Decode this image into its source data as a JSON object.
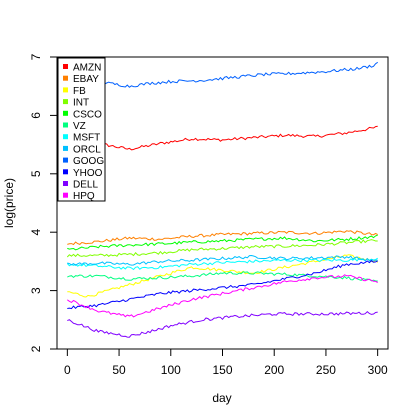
{
  "chart_data": {
    "type": "line",
    "title": "",
    "xlabel": "day",
    "ylabel": "log(price)",
    "xlim": [
      -10,
      310
    ],
    "ylim": [
      2.0,
      7.0
    ],
    "x_ticks": [
      0,
      50,
      100,
      150,
      200,
      250,
      300
    ],
    "y_ticks": [
      2,
      3,
      4,
      5,
      6,
      7
    ],
    "grid": false,
    "legend": "top-left",
    "series": [
      {
        "name": "AMZN",
        "color": "#ff0000",
        "x": [
          0,
          30,
          60,
          90,
          120,
          150,
          180,
          210,
          240,
          270,
          295,
          300
        ],
        "y": [
          5.65,
          5.52,
          5.42,
          5.52,
          5.6,
          5.58,
          5.62,
          5.66,
          5.64,
          5.7,
          5.78,
          5.8
        ]
      },
      {
        "name": "EBAY",
        "color": "#ff8000",
        "x": [
          0,
          30,
          60,
          90,
          120,
          150,
          180,
          210,
          240,
          270,
          300
        ],
        "y": [
          3.8,
          3.84,
          3.9,
          3.88,
          3.93,
          3.96,
          3.98,
          4.0,
          3.98,
          4.02,
          3.95
        ]
      },
      {
        "name": "FB",
        "color": "#ffff00",
        "x": [
          0,
          20,
          40,
          60,
          80,
          100,
          120,
          150,
          180,
          210,
          240,
          270,
          300
        ],
        "y": [
          2.98,
          2.9,
          3.0,
          3.1,
          3.2,
          3.3,
          3.4,
          3.35,
          3.3,
          3.4,
          3.5,
          3.6,
          3.5
        ]
      },
      {
        "name": "INT",
        "color": "#80ff00",
        "x": [
          0,
          30,
          60,
          90,
          120,
          150,
          180,
          210,
          240,
          270,
          300
        ],
        "y": [
          3.6,
          3.6,
          3.62,
          3.65,
          3.7,
          3.72,
          3.75,
          3.76,
          3.78,
          3.82,
          3.86
        ]
      },
      {
        "name": "CSCO",
        "color": "#00ff00",
        "x": [
          0,
          30,
          60,
          90,
          120,
          150,
          180,
          210,
          240,
          270,
          300
        ],
        "y": [
          3.7,
          3.75,
          3.78,
          3.8,
          3.83,
          3.85,
          3.88,
          3.9,
          3.85,
          3.88,
          3.93
        ]
      },
      {
        "name": "VZ",
        "color": "#00ff80",
        "x": [
          0,
          30,
          60,
          90,
          120,
          150,
          180,
          210,
          240,
          270,
          300
        ],
        "y": [
          3.25,
          3.25,
          3.2,
          3.22,
          3.25,
          3.3,
          3.3,
          3.28,
          3.25,
          3.22,
          3.15
        ]
      },
      {
        "name": "MSFT",
        "color": "#00ffff",
        "x": [
          0,
          30,
          60,
          90,
          120,
          150,
          180,
          210,
          240,
          270,
          300
        ],
        "y": [
          3.45,
          3.42,
          3.38,
          3.4,
          3.45,
          3.48,
          3.5,
          3.52,
          3.52,
          3.52,
          3.55
        ]
      },
      {
        "name": "ORCL",
        "color": "#00c0ff",
        "x": [
          0,
          30,
          60,
          90,
          120,
          150,
          180,
          210,
          240,
          270,
          300
        ],
        "y": [
          3.45,
          3.47,
          3.45,
          3.5,
          3.52,
          3.55,
          3.58,
          3.55,
          3.56,
          3.58,
          3.5
        ]
      },
      {
        "name": "GOOG",
        "color": "#0060ff",
        "x": [
          0,
          20,
          40,
          60,
          80,
          100,
          130,
          160,
          190,
          220,
          250,
          280,
          295,
          300
        ],
        "y": [
          6.55,
          6.57,
          6.55,
          6.5,
          6.55,
          6.58,
          6.6,
          6.65,
          6.7,
          6.72,
          6.75,
          6.8,
          6.85,
          6.9
        ]
      },
      {
        "name": "YHOO",
        "color": "#0000ff",
        "x": [
          0,
          30,
          60,
          90,
          120,
          150,
          180,
          210,
          240,
          270,
          300
        ],
        "y": [
          2.7,
          2.75,
          2.85,
          2.95,
          3.0,
          3.05,
          3.1,
          3.2,
          3.3,
          3.45,
          3.5
        ]
      },
      {
        "name": "DELL",
        "color": "#8000ff",
        "x": [
          0,
          30,
          60,
          80,
          100,
          130,
          160,
          200,
          250,
          300
        ],
        "y": [
          2.5,
          2.3,
          2.22,
          2.3,
          2.4,
          2.5,
          2.55,
          2.6,
          2.6,
          2.62
        ]
      },
      {
        "name": "HPQ",
        "color": "#ff00ff",
        "x": [
          0,
          30,
          60,
          90,
          120,
          150,
          180,
          210,
          240,
          270,
          300
        ],
        "y": [
          2.85,
          2.65,
          2.55,
          2.7,
          2.85,
          2.95,
          3.05,
          3.15,
          3.22,
          3.25,
          3.15
        ]
      }
    ]
  }
}
